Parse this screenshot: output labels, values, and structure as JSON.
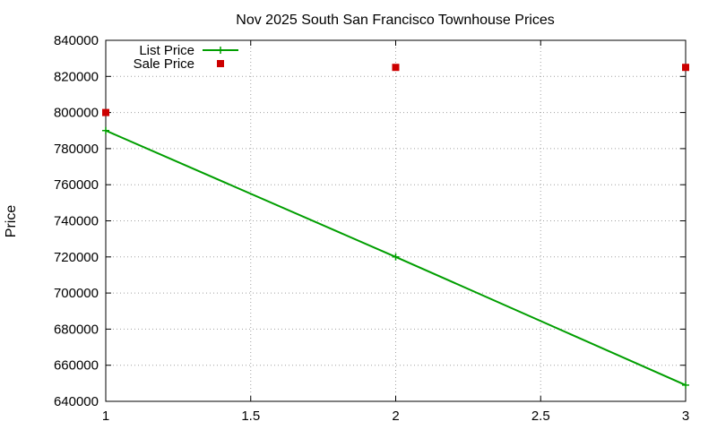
{
  "chart_data": {
    "type": "line",
    "title": "Nov 2025 South San Francisco Townhouse Prices",
    "xlabel": "",
    "ylabel": "Price",
    "xlim": [
      1,
      3
    ],
    "ylim": [
      640000,
      840000
    ],
    "x_ticks": [
      "1",
      "1.5",
      "2",
      "2.5",
      "3"
    ],
    "y_ticks": [
      "640000",
      "660000",
      "680000",
      "700000",
      "720000",
      "740000",
      "760000",
      "780000",
      "800000",
      "820000",
      "840000"
    ],
    "grid": true,
    "legend_position": "top-left",
    "series": [
      {
        "name": "List Price",
        "style": "linespoints",
        "marker": "plus",
        "color": "#009e00",
        "x": [
          1,
          2,
          3
        ],
        "y": [
          790000,
          720000,
          649000
        ]
      },
      {
        "name": "Sale Price",
        "style": "points",
        "marker": "square",
        "color": "#cc0000",
        "x": [
          1,
          2,
          3
        ],
        "y": [
          800000,
          825000,
          825000
        ]
      }
    ]
  }
}
